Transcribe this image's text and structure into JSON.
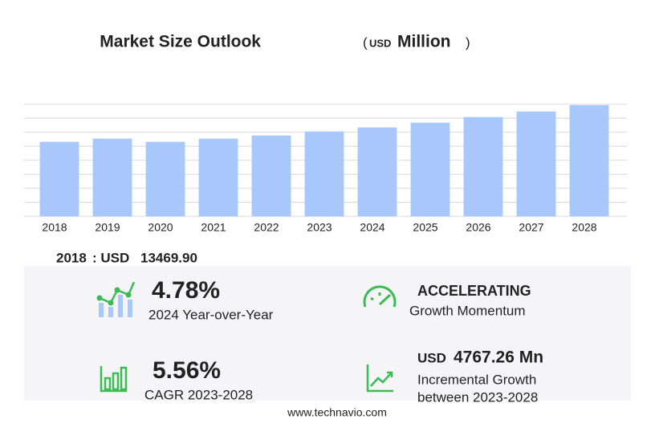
{
  "chart_data": {
    "type": "bar",
    "title": "Market Size Outlook",
    "unit_label": {
      "open": "(",
      "currency": "USD",
      "name": "Million",
      "close": ")"
    },
    "categories": [
      "2018",
      "2019",
      "2020",
      "2021",
      "2022",
      "2023",
      "2024",
      "2025",
      "2026",
      "2027",
      "2028"
    ],
    "values": [
      13469.9,
      14050,
      13470,
      14050,
      14630,
      15350,
      16080,
      16940,
      17950,
      18970,
      20120
    ],
    "color": "#a8c8fb",
    "ylim": [
      0,
      20300
    ],
    "grid": true
  },
  "summary": {
    "year": "2018",
    "label": ": USD",
    "value": "13469.90"
  },
  "kpis": [
    {
      "value": "4.78%",
      "caption": "2024 Year-over-Year"
    },
    {
      "value": "ACCELERATING",
      "caption": "Growth Momentum"
    },
    {
      "value": "5.56%",
      "caption": "CAGR 2023-2028"
    },
    {
      "currency": "USD",
      "value": "4767.26 Mn",
      "caption": "Incremental Growth",
      "caption2": "between 2023-2028"
    }
  ],
  "footer": "www.technavio.com"
}
